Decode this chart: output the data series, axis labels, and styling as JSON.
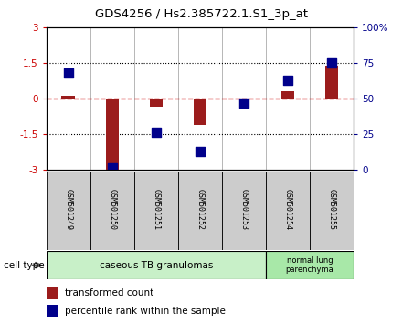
{
  "title": "GDS4256 / Hs2.385722.1.S1_3p_at",
  "samples": [
    "GSM501249",
    "GSM501250",
    "GSM501251",
    "GSM501252",
    "GSM501253",
    "GSM501254",
    "GSM501255"
  ],
  "transformed_count": [
    0.1,
    -3.0,
    -0.35,
    -1.1,
    -0.05,
    0.3,
    1.4
  ],
  "percentile_rank": [
    68,
    1,
    26,
    13,
    47,
    63,
    75
  ],
  "ylim_left": [
    -3,
    3
  ],
  "ylim_right": [
    0,
    100
  ],
  "yticks_left": [
    -3,
    -1.5,
    0,
    1.5,
    3
  ],
  "yticks_left_labels": [
    "-3",
    "-1.5",
    "0",
    "1.5",
    "3"
  ],
  "yticks_right": [
    0,
    25,
    50,
    75,
    100
  ],
  "yticks_right_labels": [
    "0",
    "25",
    "50",
    "75",
    "100%"
  ],
  "bar_color": "#9B1C1C",
  "dot_color": "#00008B",
  "hline_color": "#CC0000",
  "grid_color": "#000000",
  "group1_label": "caseous TB granulomas",
  "group2_label": "normal lung\nparenchyma",
  "group1_color": "#C8F0C8",
  "group2_color": "#A8E8A8",
  "cell_type_label": "cell type",
  "legend_bar_label": "transformed count",
  "legend_dot_label": "percentile rank within the sample",
  "fig_width": 4.4,
  "fig_height": 3.54,
  "dpi": 100
}
